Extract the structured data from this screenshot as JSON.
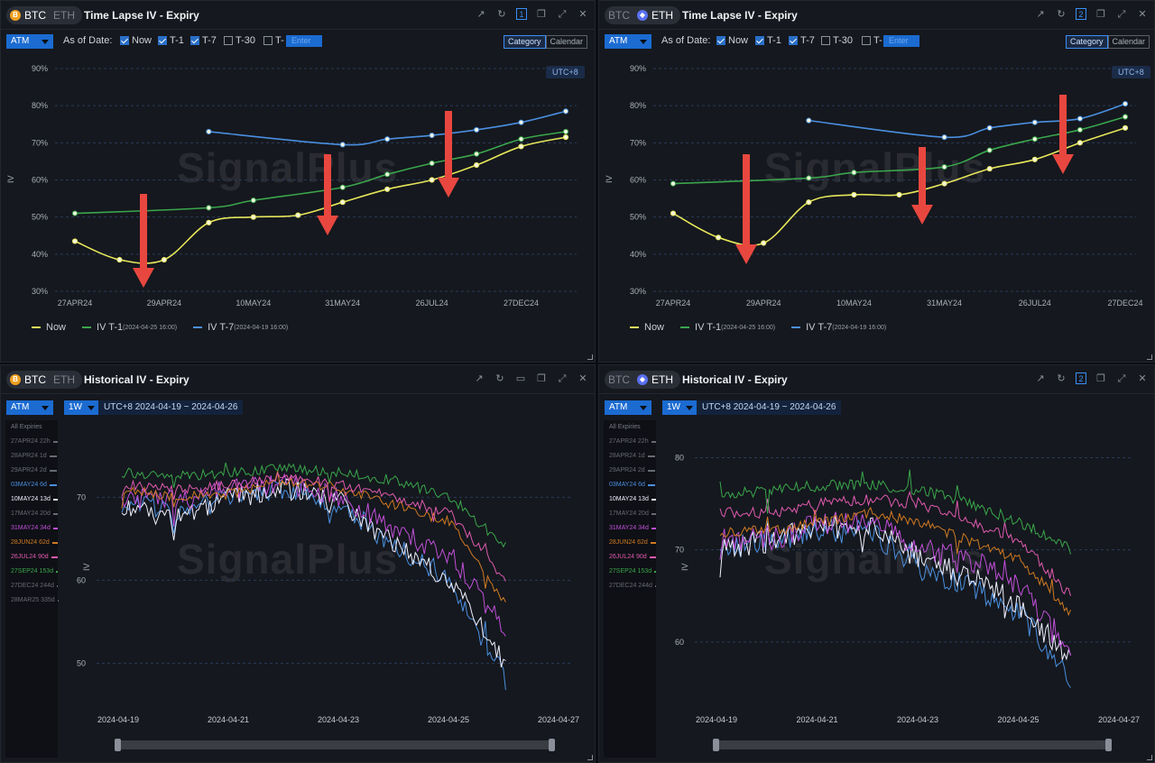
{
  "brand_watermark": "SignalPlus",
  "coins": {
    "btc": "BTC",
    "eth": "ETH",
    "btc_symbol": "B",
    "eth_symbol": "◆"
  },
  "colors": {
    "now": "#e6e65a",
    "t1": "#3aa64c",
    "t7": "#4a8fe0",
    "accent": "#1b6bd1",
    "arrow": "#e8473f"
  },
  "time_lapse": {
    "title": "Time Lapse IV - Expiry",
    "atm": "ATM",
    "as_of": "As of Date:",
    "checks": [
      {
        "label": "Now",
        "checked": true
      },
      {
        "label": "T-1",
        "checked": true
      },
      {
        "label": "T-7",
        "checked": true
      },
      {
        "label": "T-30",
        "checked": false
      },
      {
        "label": "T-",
        "checked": false
      }
    ],
    "enter_placeholder": "Enter",
    "category": "Category",
    "calendar": "Calendar",
    "utc": "UTC+8",
    "y_ticks": [
      "90%",
      "80%",
      "70%",
      "60%",
      "50%",
      "40%",
      "30%"
    ],
    "x_ticks": [
      "27APR24",
      "29APR24",
      "10MAY24",
      "31MAY24",
      "26JUL24",
      "27DEC24"
    ],
    "ylabel": "IV",
    "legend": [
      {
        "label": "Now",
        "sub": ""
      },
      {
        "label": "IV T-1",
        "sub": "(2024-04-25 16:00)"
      },
      {
        "label": "IV T-7",
        "sub": "(2024-04-19 16:00)"
      }
    ]
  },
  "historical": {
    "title": "Historical IV - Expiry",
    "atm": "ATM",
    "period": "1W",
    "range": "UTC+8 2024-04-19 ~ 2024-04-26",
    "ylabel": "IV",
    "x_ticks": [
      "2024-04-19",
      "2024-04-21",
      "2024-04-23",
      "2024-04-25",
      "2024-04-27"
    ],
    "all_expiries": "All Expiries",
    "btc_expiries": [
      {
        "label": "27APR24 22h",
        "color": "#666a72"
      },
      {
        "label": "28APR24 1d",
        "color": "#666a72"
      },
      {
        "label": "29APR24 2d",
        "color": "#666a72"
      },
      {
        "label": "03MAY24 6d",
        "color": "#4a8fe0"
      },
      {
        "label": "10MAY24 13d",
        "color": "#f0f0ff"
      },
      {
        "label": "17MAY24 20d",
        "color": "#666a72"
      },
      {
        "label": "31MAY24 34d",
        "color": "#c04fd8"
      },
      {
        "label": "28JUN24 62d",
        "color": "#d07a22"
      },
      {
        "label": "26JUL24 90d",
        "color": "#e05ab0"
      },
      {
        "label": "27SEP24 153d",
        "color": "#3aa64c"
      },
      {
        "label": "27DEC24 244d",
        "color": "#666a72"
      },
      {
        "label": "28MAR25 335d",
        "color": "#666a72"
      }
    ],
    "eth_expiries": [
      {
        "label": "27APR24 22h",
        "color": "#666a72"
      },
      {
        "label": "28APR24 1d",
        "color": "#666a72"
      },
      {
        "label": "29APR24 2d",
        "color": "#666a72"
      },
      {
        "label": "03MAY24 6d",
        "color": "#4a8fe0"
      },
      {
        "label": "10MAY24 13d",
        "color": "#f0f0ff"
      },
      {
        "label": "17MAY24 20d",
        "color": "#666a72"
      },
      {
        "label": "31MAY24 34d",
        "color": "#c04fd8"
      },
      {
        "label": "28JUN24 62d",
        "color": "#d07a22"
      },
      {
        "label": "26JUL24 90d",
        "color": "#e05ab0"
      },
      {
        "label": "27SEP24 153d",
        "color": "#3aa64c"
      },
      {
        "label": "27DEC24 244d",
        "color": "#666a72"
      }
    ],
    "btc_y_ticks": [
      "70",
      "60",
      "50"
    ],
    "eth_y_ticks": [
      "80",
      "70",
      "60"
    ]
  },
  "chart_data": [
    {
      "type": "line",
      "asset": "BTC",
      "x": [
        "27APR24",
        "28APR24",
        "29APR24",
        "03MAY24",
        "10MAY24",
        "17MAY24",
        "31MAY24",
        "28JUN24",
        "26JUL24",
        "27SEP24",
        "27DEC24",
        "28MAR25"
      ],
      "ylim": [
        30,
        90
      ],
      "series": [
        {
          "name": "Now",
          "values": [
            43.5,
            38.5,
            38.5,
            48.5,
            50,
            50.5,
            54,
            57.5,
            60,
            64,
            69,
            71.5
          ]
        },
        {
          "name": "IV T-1",
          "values": [
            51,
            null,
            null,
            52.5,
            54.5,
            null,
            58,
            61.5,
            64.5,
            67,
            71,
            73
          ]
        },
        {
          "name": "IV T-7",
          "values": [
            null,
            null,
            null,
            73,
            null,
            null,
            69.5,
            71,
            72,
            73.5,
            75.5,
            78.5
          ]
        }
      ]
    },
    {
      "type": "line",
      "asset": "ETH",
      "x": [
        "27APR24",
        "28APR24",
        "29APR24",
        "03MAY24",
        "10MAY24",
        "17MAY24",
        "31MAY24",
        "28JUN24",
        "26JUL24",
        "27SEP24",
        "27DEC24"
      ],
      "ylim": [
        30,
        90
      ],
      "series": [
        {
          "name": "Now",
          "values": [
            51,
            44.5,
            43,
            54,
            56,
            56,
            59,
            63,
            65.5,
            70,
            74
          ]
        },
        {
          "name": "IV T-1",
          "values": [
            59,
            null,
            null,
            60.5,
            62,
            null,
            63.5,
            68,
            71,
            73.5,
            77
          ]
        },
        {
          "name": "IV T-7",
          "values": [
            null,
            null,
            null,
            76,
            null,
            null,
            71.5,
            74,
            75.5,
            76.5,
            80.5
          ]
        }
      ]
    },
    {
      "type": "line",
      "asset": "BTC",
      "x": [
        "2024-04-19",
        "2024-04-20",
        "2024-04-21",
        "2024-04-22",
        "2024-04-23",
        "2024-04-24",
        "2024-04-25",
        "2024-04-26"
      ],
      "ylim": [
        47,
        77
      ],
      "series": [
        {
          "name": "03MAY24 6d",
          "values": [
            70,
            68,
            70,
            71,
            69,
            64,
            60,
            48
          ]
        },
        {
          "name": "10MAY24 13d",
          "values": [
            69,
            67.5,
            70,
            71,
            69.5,
            64,
            60,
            50
          ]
        },
        {
          "name": "31MAY24 34d",
          "values": [
            70,
            69.5,
            71,
            71.5,
            70,
            66,
            63,
            54
          ]
        },
        {
          "name": "28JUN24 62d",
          "values": [
            71,
            70,
            70.5,
            72,
            71,
            69,
            67,
            57
          ]
        },
        {
          "name": "26JUL24 90d",
          "values": [
            71.5,
            71,
            71.5,
            72.5,
            71.5,
            70,
            68,
            60
          ]
        },
        {
          "name": "27SEP24 153d",
          "values": [
            73,
            72.5,
            73,
            73.5,
            73,
            72,
            70,
            64
          ]
        }
      ]
    },
    {
      "type": "line",
      "asset": "ETH",
      "x": [
        "2024-04-19",
        "2024-04-20",
        "2024-04-21",
        "2024-04-22",
        "2024-04-23",
        "2024-04-24",
        "2024-04-25",
        "2024-04-26"
      ],
      "ylim": [
        55,
        82
      ],
      "series": [
        {
          "name": "03MAY24 6d",
          "values": [
            70,
            71,
            72,
            72,
            68,
            66,
            63,
            56
          ]
        },
        {
          "name": "10MAY24 13d",
          "values": [
            70,
            71,
            72.5,
            72.5,
            69,
            67,
            64,
            58
          ]
        },
        {
          "name": "31MAY24 34d",
          "values": [
            71,
            71,
            73,
            73,
            70,
            69,
            66,
            59
          ]
        },
        {
          "name": "28JUN24 62d",
          "values": [
            72,
            72,
            73,
            74,
            73,
            71,
            69,
            63
          ]
        },
        {
          "name": "26JUL24 90d",
          "values": [
            74,
            74,
            75,
            75.5,
            75,
            73,
            71,
            65
          ]
        },
        {
          "name": "27SEP24 153d",
          "values": [
            76,
            76.5,
            77,
            77,
            76.5,
            75,
            73,
            70
          ]
        }
      ]
    }
  ]
}
